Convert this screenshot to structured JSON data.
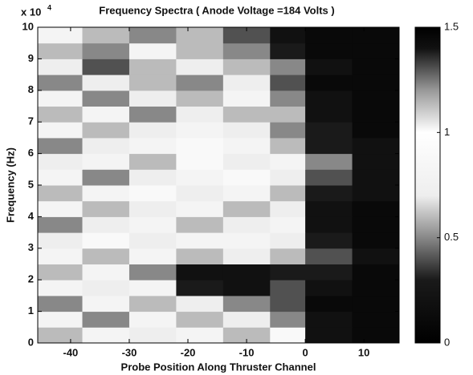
{
  "chart_data": {
    "type": "heatmap",
    "title": "Frequency Spectra ( Anode Voltage =184 Volts )",
    "x_label": "Probe Position Along Thruster Channel",
    "y_label": "Frequency (Hz)",
    "y_multiplier": {
      "base": "x 10",
      "exponent": "4"
    },
    "xlim": [
      -45.6,
      16
    ],
    "xticks": [
      -40,
      -30,
      -20,
      -10,
      0,
      10
    ],
    "ylim": [
      0,
      100000
    ],
    "yticks": [
      0,
      {
        "value": 10000,
        "label": "1"
      },
      {
        "value": 20000,
        "label": "2"
      },
      {
        "value": 30000,
        "label": "3"
      },
      {
        "value": 40000,
        "label": "4"
      },
      {
        "value": 50000,
        "label": "5"
      },
      {
        "value": 60000,
        "label": "6"
      },
      {
        "value": 70000,
        "label": "7"
      },
      {
        "value": 80000,
        "label": "8"
      },
      {
        "value": 90000,
        "label": "9"
      },
      {
        "value": 100000,
        "label": "10"
      }
    ],
    "x_edges": [
      -45.6,
      -38,
      -30,
      -22,
      -14,
      -6,
      0,
      8,
      16
    ],
    "y_edges": [
      0,
      5000,
      10000,
      15000,
      20000,
      25000,
      30000,
      35000,
      40000,
      45000,
      50000,
      55000,
      60000,
      65000,
      70000,
      75000,
      80000,
      85000,
      90000,
      95000,
      100000
    ],
    "values": [
      [
        0.6,
        0.8,
        0.7,
        0.8,
        0.6,
        0.9,
        0.2,
        0.1
      ],
      [
        0.8,
        0.5,
        0.8,
        0.6,
        0.7,
        0.5,
        0.2,
        0.1
      ],
      [
        0.5,
        0.8,
        0.6,
        0.7,
        0.5,
        0.4,
        0.1,
        0.1
      ],
      [
        0.8,
        0.7,
        0.8,
        0.3,
        0.2,
        0.4,
        0.2,
        0.1
      ],
      [
        0.6,
        0.8,
        0.5,
        0.2,
        0.2,
        0.3,
        0.3,
        0.1
      ],
      [
        0.8,
        0.6,
        0.8,
        0.6,
        0.7,
        0.6,
        0.4,
        0.2
      ],
      [
        0.7,
        0.9,
        0.7,
        0.8,
        0.8,
        0.7,
        0.3,
        0.1
      ],
      [
        0.5,
        0.7,
        0.8,
        0.6,
        0.7,
        0.8,
        0.2,
        0.1
      ],
      [
        0.8,
        0.6,
        0.7,
        0.8,
        0.6,
        0.7,
        0.2,
        0.1
      ],
      [
        0.6,
        0.8,
        0.9,
        0.7,
        0.8,
        0.6,
        0.3,
        0.2
      ],
      [
        0.8,
        0.5,
        0.7,
        0.8,
        0.9,
        0.7,
        0.4,
        0.2
      ],
      [
        0.7,
        0.8,
        0.6,
        0.9,
        0.7,
        0.8,
        0.5,
        0.2
      ],
      [
        0.5,
        0.7,
        0.8,
        0.9,
        0.8,
        0.6,
        0.3,
        0.2
      ],
      [
        0.8,
        0.6,
        0.7,
        0.8,
        0.7,
        0.5,
        0.3,
        0.1
      ],
      [
        0.6,
        0.8,
        0.5,
        0.7,
        0.6,
        0.6,
        0.2,
        0.1
      ],
      [
        0.8,
        0.5,
        0.7,
        0.6,
        0.8,
        0.5,
        0.2,
        0.1
      ],
      [
        0.5,
        0.7,
        0.6,
        0.5,
        0.7,
        0.4,
        0.1,
        0.1
      ],
      [
        0.7,
        0.4,
        0.6,
        0.7,
        0.6,
        0.5,
        0.2,
        0.1
      ],
      [
        0.6,
        0.5,
        0.8,
        0.6,
        0.5,
        0.3,
        0.1,
        0.1
      ],
      [
        0.8,
        0.6,
        0.5,
        0.6,
        0.4,
        0.2,
        0.1,
        0.1
      ]
    ],
    "clim": [
      0,
      1.5
    ],
    "cticks": [
      0,
      0.5,
      1,
      1.5
    ],
    "colormap": [
      {
        "value": 0,
        "color": "#000000"
      },
      {
        "value": 0.3,
        "color": "#1a1a1a"
      },
      {
        "value": 0.5,
        "color": "#888888"
      },
      {
        "value": 0.7,
        "color": "#eeeeee"
      },
      {
        "value": 1.0,
        "color": "#ffffff"
      },
      {
        "value": 1.2,
        "color": "#999999"
      },
      {
        "value": 1.4,
        "color": "#111111"
      },
      {
        "value": 1.5,
        "color": "#000000"
      }
    ]
  }
}
